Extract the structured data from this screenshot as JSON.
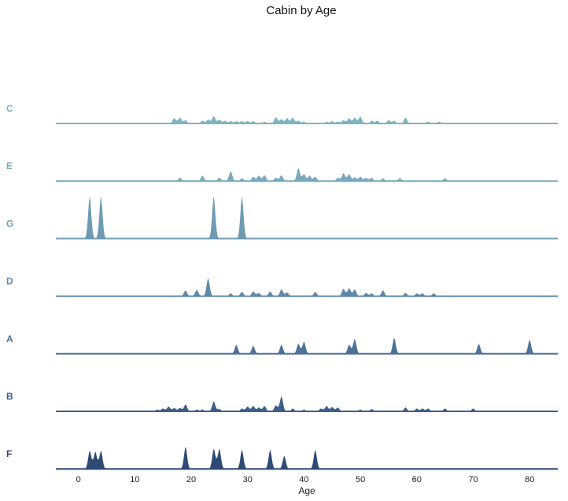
{
  "chart_data": {
    "type": "area",
    "title": "Cabin by Age",
    "xlabel": "Age",
    "ylabel": "",
    "xlim": [
      -4,
      85
    ],
    "xticks": [
      0,
      10,
      20,
      30,
      40,
      50,
      60,
      70,
      80
    ],
    "grid": false,
    "legend": "none",
    "series": [
      {
        "name": "C",
        "color": "#7fb3bf",
        "peaks": [
          [
            2,
            0.08
          ],
          [
            17,
            0.55
          ],
          [
            18,
            0.6
          ],
          [
            19,
            0.35
          ],
          [
            22,
            0.3
          ],
          [
            23,
            0.4
          ],
          [
            24,
            0.75
          ],
          [
            25,
            0.4
          ],
          [
            26,
            0.3
          ],
          [
            27,
            0.25
          ],
          [
            28,
            0.25
          ],
          [
            29,
            0.25
          ],
          [
            30,
            0.25
          ],
          [
            31,
            0.25
          ],
          [
            33,
            0.2
          ],
          [
            35,
            0.65
          ],
          [
            36,
            0.45
          ],
          [
            37,
            0.55
          ],
          [
            38,
            0.6
          ],
          [
            39,
            0.3
          ],
          [
            40,
            0.2
          ],
          [
            44,
            0.2
          ],
          [
            45,
            0.25
          ],
          [
            46,
            0.2
          ],
          [
            47,
            0.35
          ],
          [
            48,
            0.55
          ],
          [
            49,
            0.6
          ],
          [
            50,
            0.7
          ],
          [
            52,
            0.3
          ],
          [
            53,
            0.3
          ],
          [
            55,
            0.35
          ],
          [
            56,
            0.3
          ],
          [
            58,
            0.6
          ],
          [
            62,
            0.2
          ],
          [
            64,
            0.2
          ]
        ]
      },
      {
        "name": "E",
        "color": "#79a9bb",
        "peaks": [
          [
            18,
            0.35
          ],
          [
            22,
            0.55
          ],
          [
            25,
            0.35
          ],
          [
            27,
            1.0
          ],
          [
            29,
            0.3
          ],
          [
            31,
            0.45
          ],
          [
            32,
            0.55
          ],
          [
            33,
            0.6
          ],
          [
            35,
            0.35
          ],
          [
            36,
            0.6
          ],
          [
            39,
            1.3
          ],
          [
            40,
            0.7
          ],
          [
            41,
            0.55
          ],
          [
            42,
            0.45
          ],
          [
            46,
            0.35
          ],
          [
            47,
            0.8
          ],
          [
            48,
            0.7
          ],
          [
            49,
            0.4
          ],
          [
            50,
            0.45
          ],
          [
            51,
            0.35
          ],
          [
            52,
            0.35
          ],
          [
            54,
            0.3
          ],
          [
            57,
            0.3
          ],
          [
            65,
            0.3
          ]
        ]
      },
      {
        "name": "G",
        "color": "#6e9ab2",
        "peaks": [
          [
            2,
            4.2
          ],
          [
            4,
            4.2
          ],
          [
            24,
            4.2
          ],
          [
            29,
            4.2
          ]
        ]
      },
      {
        "name": "D",
        "color": "#5f89a8",
        "peaks": [
          [
            19,
            0.6
          ],
          [
            21,
            0.65
          ],
          [
            23,
            1.8
          ],
          [
            27,
            0.3
          ],
          [
            29,
            0.45
          ],
          [
            31,
            0.5
          ],
          [
            32,
            0.35
          ],
          [
            34,
            0.5
          ],
          [
            36,
            0.7
          ],
          [
            37,
            0.4
          ],
          [
            42,
            0.45
          ],
          [
            47,
            0.75
          ],
          [
            48,
            0.8
          ],
          [
            49,
            0.7
          ],
          [
            51,
            0.35
          ],
          [
            52,
            0.3
          ],
          [
            54,
            0.6
          ],
          [
            58,
            0.35
          ],
          [
            60,
            0.3
          ],
          [
            61,
            0.3
          ],
          [
            63,
            0.3
          ]
        ]
      },
      {
        "name": "A",
        "color": "#4d7199",
        "peaks": [
          [
            28,
            0.9
          ],
          [
            31,
            0.8
          ],
          [
            36,
            0.9
          ],
          [
            39,
            1.0
          ],
          [
            40,
            1.2
          ],
          [
            48,
            0.9
          ],
          [
            49,
            1.5
          ],
          [
            56,
            1.6
          ],
          [
            71,
            1.0
          ],
          [
            80,
            1.4
          ]
        ]
      },
      {
        "name": "B",
        "color": "#3e5f8a",
        "peaks": [
          [
            14,
            0.2
          ],
          [
            15,
            0.3
          ],
          [
            16,
            0.5
          ],
          [
            17,
            0.35
          ],
          [
            18,
            0.35
          ],
          [
            19,
            0.7
          ],
          [
            21,
            0.2
          ],
          [
            22,
            0.2
          ],
          [
            24,
            1.0
          ],
          [
            25,
            0.25
          ],
          [
            29,
            0.3
          ],
          [
            30,
            0.5
          ],
          [
            31,
            0.55
          ],
          [
            32,
            0.4
          ],
          [
            33,
            0.55
          ],
          [
            35,
            0.6
          ],
          [
            36,
            1.5
          ],
          [
            38,
            0.3
          ],
          [
            40,
            0.2
          ],
          [
            43,
            0.3
          ],
          [
            44,
            0.55
          ],
          [
            45,
            0.45
          ],
          [
            46,
            0.4
          ],
          [
            50,
            0.2
          ],
          [
            52,
            0.25
          ],
          [
            58,
            0.4
          ],
          [
            60,
            0.3
          ],
          [
            61,
            0.3
          ],
          [
            62,
            0.3
          ],
          [
            65,
            0.3
          ],
          [
            70,
            0.3
          ]
        ]
      },
      {
        "name": "F",
        "color": "#2e4a74",
        "peaks": [
          [
            2,
            1.8
          ],
          [
            3,
            1.7
          ],
          [
            4,
            1.8
          ],
          [
            19,
            2.2
          ],
          [
            24,
            2.0
          ],
          [
            25,
            2.0
          ],
          [
            29,
            1.9
          ],
          [
            34,
            1.9
          ],
          [
            36.5,
            1.3
          ],
          [
            42,
            1.9
          ]
        ]
      }
    ]
  }
}
